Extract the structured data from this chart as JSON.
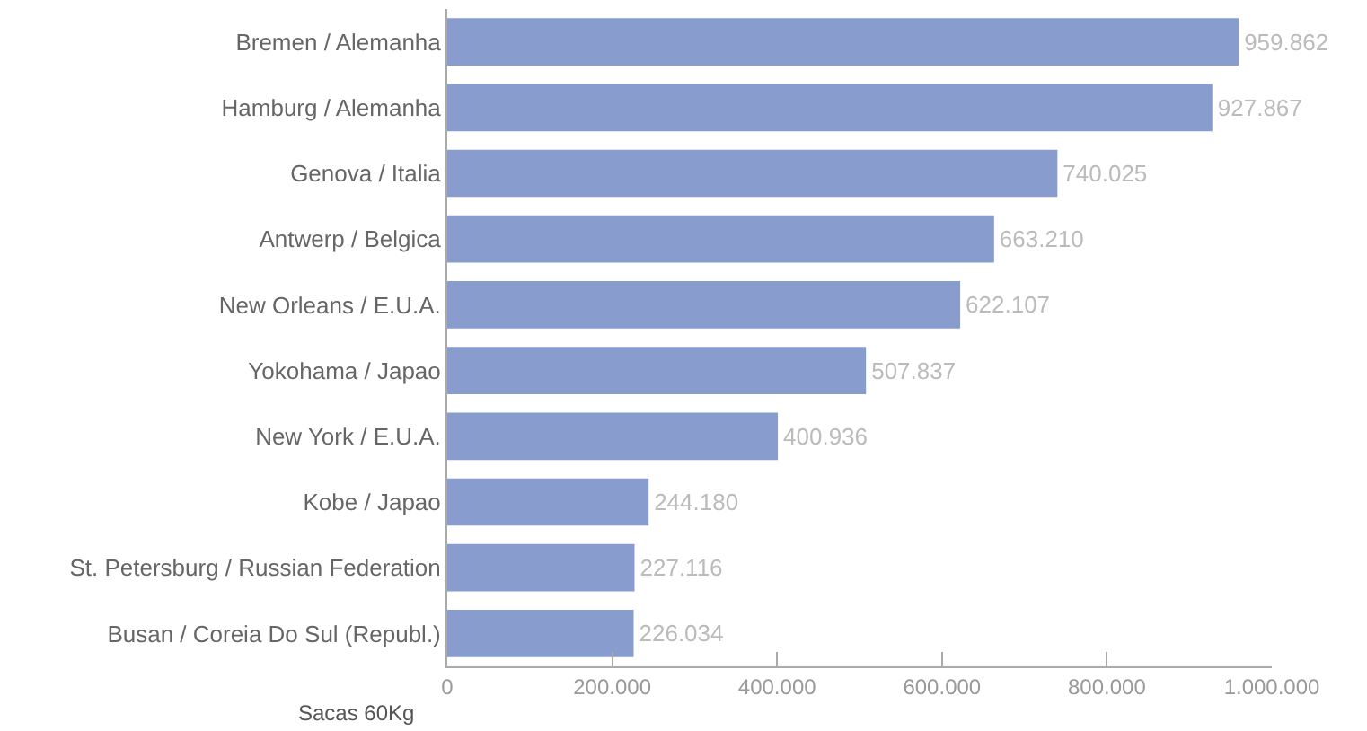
{
  "chart_data": {
    "type": "bar",
    "orientation": "horizontal",
    "xlabel": "Sacas 60Kg",
    "categories": [
      "Bremen / Alemanha",
      "Hamburg / Alemanha",
      "Genova / Italia",
      "Antwerp / Belgica",
      "New Orleans / E.U.A.",
      "Yokohama / Japao",
      "New York / E.U.A.",
      "Kobe / Japao",
      "St. Petersburg / Russian Federation",
      "Busan / Coreia Do Sul (Republ.)"
    ],
    "values": [
      959862,
      927867,
      740025,
      663210,
      622107,
      507837,
      400936,
      244180,
      227116,
      226034
    ],
    "value_labels": [
      "959.862",
      "927.867",
      "740.025",
      "663.210",
      "622.107",
      "507.837",
      "400.936",
      "244.180",
      "227.116",
      "226.034"
    ],
    "color": "#889cce",
    "xlim": [
      0,
      1000000
    ],
    "xticks": [
      0,
      {
        "value": 200000,
        "label": "200.000"
      },
      {
        "value": 400000,
        "label": "400.000"
      },
      {
        "value": 600000,
        "label": "600.000"
      },
      {
        "value": 800000,
        "label": "800.000"
      },
      {
        "value": 1000000,
        "label": "1.000.000"
      }
    ],
    "legend": false
  }
}
